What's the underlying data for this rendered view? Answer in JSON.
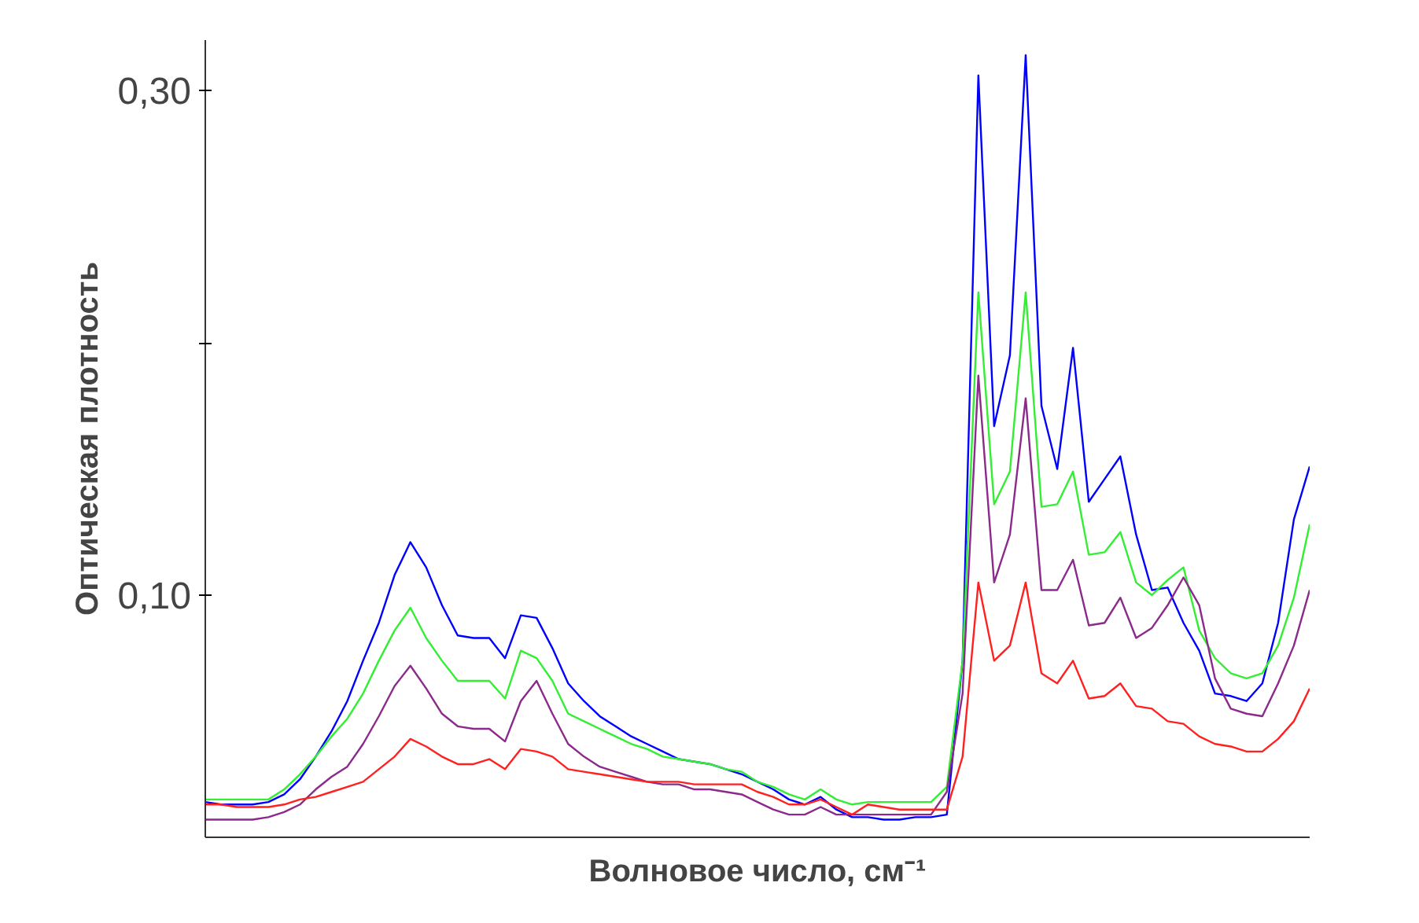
{
  "chart_data": {
    "type": "line",
    "ylabel": "Оптическая плотность",
    "xlabel": "Волновое число, см⁻¹",
    "categories": [
      null,
      null,
      null,
      null,
      null,
      null,
      null,
      null,
      null,
      null,
      null,
      null,
      null,
      null,
      null,
      null,
      null,
      null,
      null,
      null,
      null,
      null,
      null,
      null,
      null,
      null,
      null,
      null,
      null,
      null,
      null,
      null,
      null,
      null,
      null,
      null,
      null,
      null,
      null,
      null,
      null,
      null,
      null,
      null,
      null,
      null,
      null,
      null,
      null,
      null,
      null,
      null,
      null,
      null,
      null,
      null,
      null,
      null,
      null,
      null,
      null,
      null,
      null,
      null,
      null,
      null,
      null,
      null,
      null,
      null,
      null
    ],
    "ylim": [
      0.004,
      0.32
    ],
    "yticks": [
      {
        "value": 0.1,
        "label": "0,10"
      },
      {
        "value": 0.2,
        "label": null
      },
      {
        "value": 0.3,
        "label": "0,30"
      }
    ],
    "tick_labels": "y",
    "grid": false,
    "marker": "none",
    "line_style": "solid",
    "series": [
      {
        "color": "#0000ff",
        "values": [
          0.018,
          0.017,
          0.017,
          0.017,
          0.018,
          0.021,
          0.027,
          0.036,
          0.046,
          0.058,
          0.074,
          0.089,
          0.108,
          0.121,
          0.111,
          0.096,
          0.084,
          0.083,
          0.083,
          0.075,
          0.092,
          0.091,
          0.079,
          0.065,
          0.058,
          0.052,
          0.048,
          0.044,
          0.041,
          0.038,
          0.035,
          0.034,
          0.033,
          0.031,
          0.029,
          0.026,
          0.023,
          0.019,
          0.017,
          0.02,
          0.015,
          0.012,
          0.012,
          0.011,
          0.011,
          0.012,
          0.012,
          0.013,
          0.074,
          0.306,
          0.167,
          0.195,
          0.314,
          0.175,
          0.15,
          0.198,
          0.137,
          0.146,
          0.155,
          0.124,
          0.102,
          0.103,
          0.089,
          0.078,
          0.061,
          0.06,
          0.058,
          0.065,
          0.089,
          0.13,
          0.151
        ]
      },
      {
        "color": "#33ee33",
        "values": [
          0.019,
          0.019,
          0.019,
          0.019,
          0.019,
          0.023,
          0.029,
          0.036,
          0.044,
          0.051,
          0.061,
          0.074,
          0.086,
          0.095,
          0.083,
          0.074,
          0.066,
          0.066,
          0.066,
          0.059,
          0.078,
          0.075,
          0.066,
          0.053,
          0.05,
          0.047,
          0.044,
          0.041,
          0.039,
          0.036,
          0.035,
          0.034,
          0.033,
          0.031,
          0.03,
          0.026,
          0.024,
          0.021,
          0.019,
          0.023,
          0.019,
          0.017,
          0.018,
          0.018,
          0.018,
          0.018,
          0.018,
          0.024,
          0.074,
          0.22,
          0.136,
          0.149,
          0.22,
          0.135,
          0.136,
          0.149,
          0.116,
          0.117,
          0.125,
          0.105,
          0.1,
          0.106,
          0.111,
          0.086,
          0.075,
          0.069,
          0.067,
          0.069,
          0.08,
          0.099,
          0.128
        ]
      },
      {
        "color": "#8b2a8b",
        "values": [
          0.011,
          0.011,
          0.011,
          0.011,
          0.012,
          0.014,
          0.017,
          0.023,
          0.028,
          0.032,
          0.041,
          0.052,
          0.064,
          0.072,
          0.063,
          0.053,
          0.048,
          0.047,
          0.047,
          0.042,
          0.058,
          0.066,
          0.053,
          0.041,
          0.036,
          0.032,
          0.03,
          0.028,
          0.026,
          0.025,
          0.025,
          0.023,
          0.023,
          0.022,
          0.021,
          0.018,
          0.015,
          0.013,
          0.013,
          0.016,
          0.013,
          0.013,
          0.013,
          0.013,
          0.013,
          0.013,
          0.013,
          0.022,
          0.061,
          0.187,
          0.105,
          0.124,
          0.178,
          0.102,
          0.102,
          0.114,
          0.088,
          0.089,
          0.099,
          0.083,
          0.087,
          0.096,
          0.107,
          0.096,
          0.067,
          0.055,
          0.053,
          0.052,
          0.065,
          0.08,
          0.102
        ]
      },
      {
        "color": "#ff2020",
        "values": [
          0.017,
          0.017,
          0.016,
          0.016,
          0.016,
          0.017,
          0.019,
          0.02,
          0.022,
          0.024,
          0.026,
          0.031,
          0.036,
          0.043,
          0.04,
          0.036,
          0.033,
          0.033,
          0.035,
          0.031,
          0.039,
          0.038,
          0.036,
          0.031,
          0.03,
          0.029,
          0.028,
          0.027,
          0.026,
          0.026,
          0.026,
          0.025,
          0.025,
          0.025,
          0.025,
          0.022,
          0.02,
          0.017,
          0.017,
          0.019,
          0.016,
          0.013,
          0.017,
          0.016,
          0.015,
          0.015,
          0.015,
          0.015,
          0.036,
          0.105,
          0.074,
          0.08,
          0.105,
          0.069,
          0.065,
          0.074,
          0.059,
          0.06,
          0.065,
          0.056,
          0.055,
          0.05,
          0.049,
          0.044,
          0.041,
          0.04,
          0.038,
          0.038,
          0.043,
          0.05,
          0.063
        ]
      }
    ]
  }
}
